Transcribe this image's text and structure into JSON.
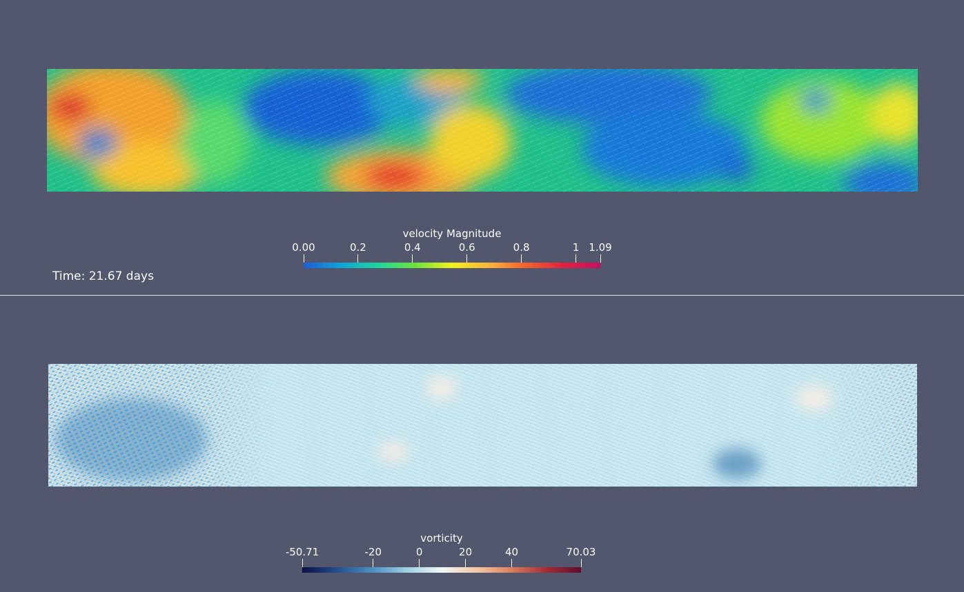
{
  "top_view": {
    "colorbar": {
      "title": "velocity Magnitude",
      "ticks": [
        {
          "label": "0.00",
          "value": 0.0
        },
        {
          "label": "0.2",
          "value": 0.2
        },
        {
          "label": "0.4",
          "value": 0.4
        },
        {
          "label": "0.6",
          "value": 0.6
        },
        {
          "label": "0.8",
          "value": 0.8
        },
        {
          "label": "1",
          "value": 1.0
        },
        {
          "label": "1.09",
          "value": 1.09
        }
      ],
      "range": [
        0.0,
        1.09
      ],
      "colors": [
        "#1e5fd6",
        "#0fa3d8",
        "#1dd69b",
        "#6ae33a",
        "#f2f21a",
        "#fbb43a",
        "#f2602d",
        "#e52140",
        "#c2125f"
      ]
    },
    "time_label": "Time: 21.67 days"
  },
  "bottom_view": {
    "colorbar": {
      "title": "vorticity",
      "ticks": [
        {
          "label": "-50.71",
          "value": -50.71
        },
        {
          "label": "-20",
          "value": -20
        },
        {
          "label": "0",
          "value": 0
        },
        {
          "label": "20",
          "value": 20
        },
        {
          "label": "40",
          "value": 40
        },
        {
          "label": "70.03",
          "value": 70.03
        }
      ],
      "range": [
        -50.71,
        70.03
      ],
      "colors": [
        "#0c1048",
        "#244f8e",
        "#4b8ec2",
        "#9ccfe2",
        "#f2f8f6",
        "#f5c8a4",
        "#dd7d5c",
        "#a52b35",
        "#5e0f2c"
      ]
    }
  }
}
